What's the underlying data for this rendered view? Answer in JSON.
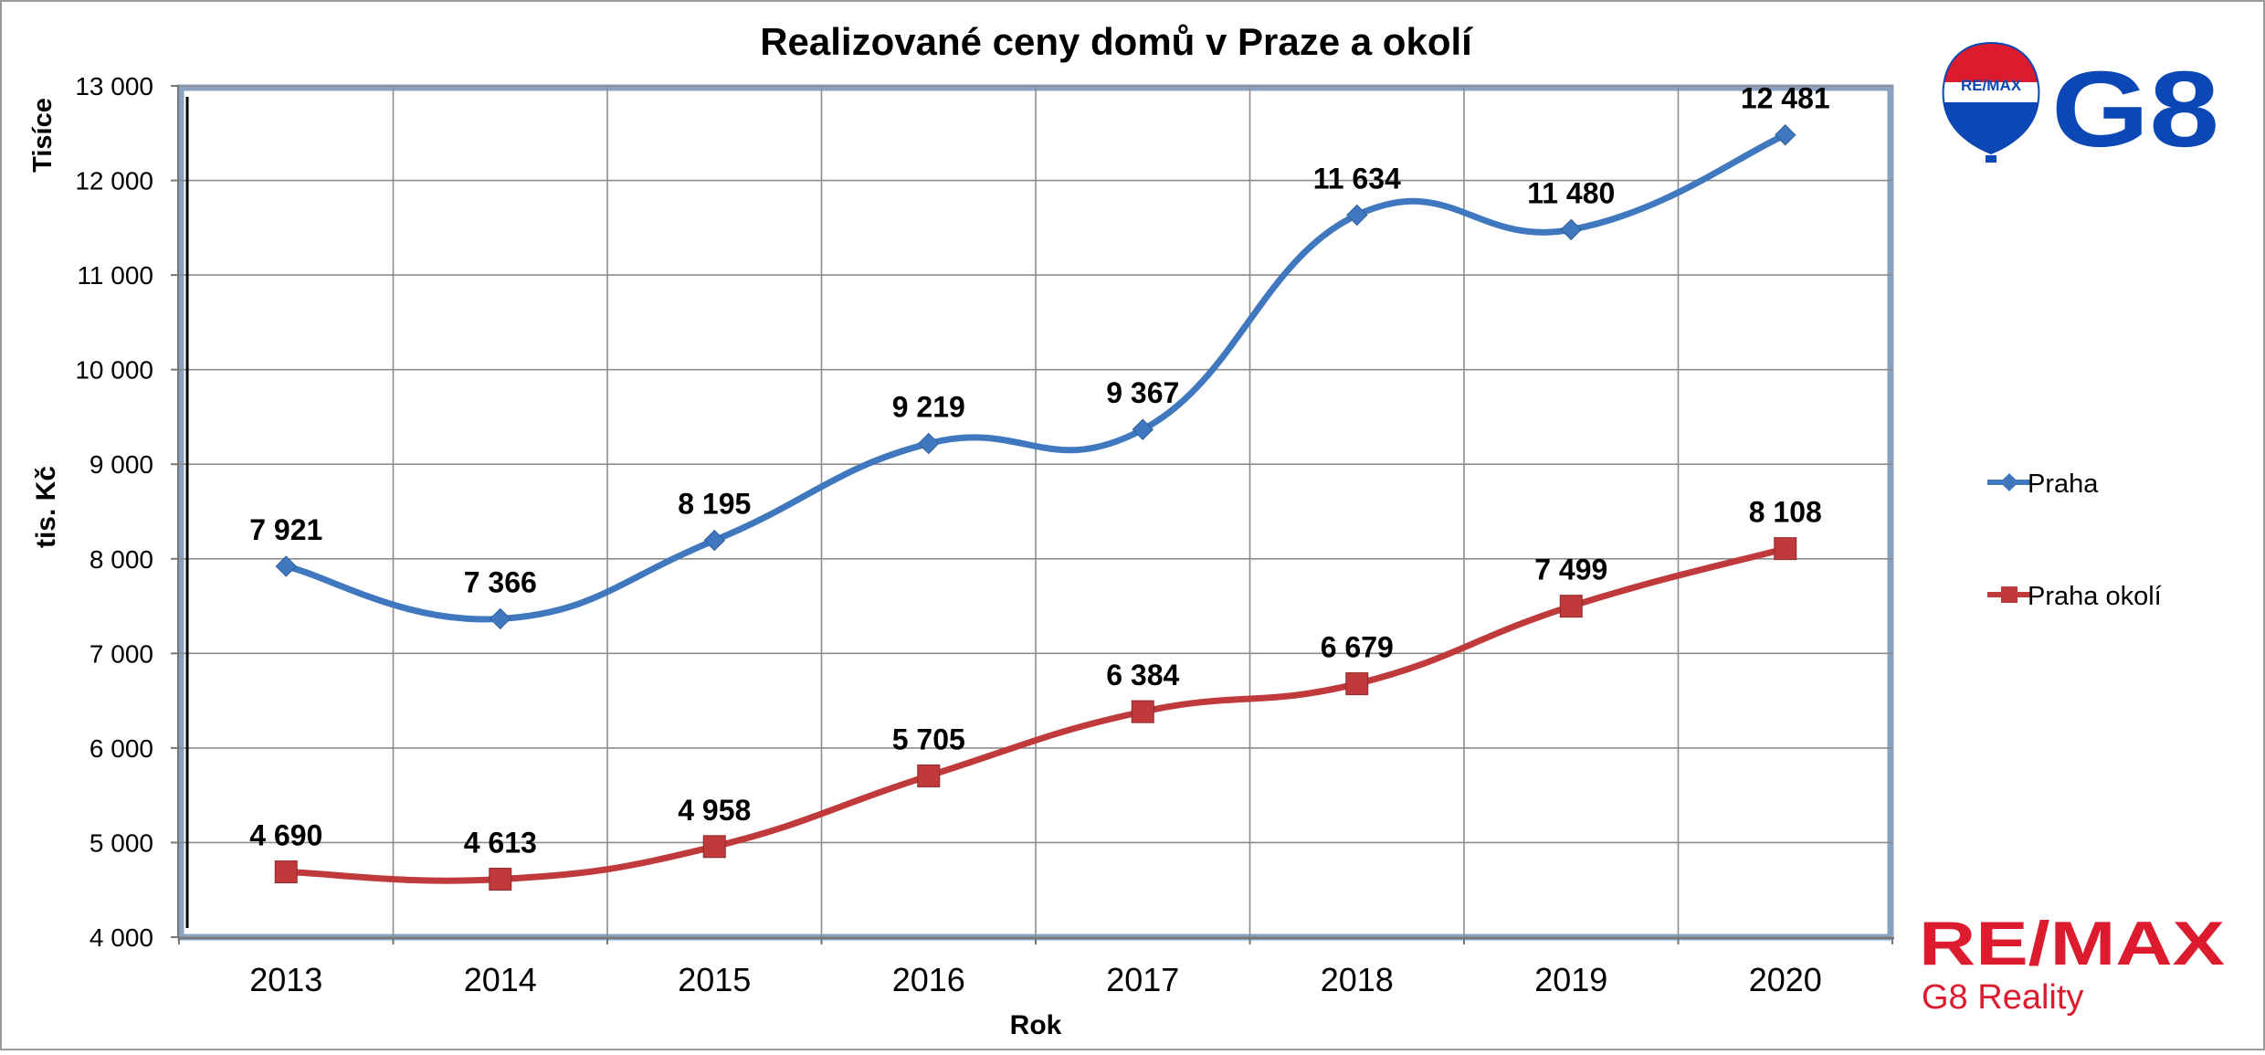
{
  "chart_data": {
    "type": "line",
    "title": "Realizované ceny domů v Praze a okolí",
    "xlabel": "Rok",
    "ylabel": "tis. Kč",
    "y_units_label": "Tisíce",
    "categories": [
      "2013",
      "2014",
      "2015",
      "2016",
      "2017",
      "2018",
      "2019",
      "2020"
    ],
    "ylim": [
      4000,
      13000
    ],
    "yticks": [
      4000,
      5000,
      6000,
      7000,
      8000,
      9000,
      10000,
      11000,
      12000,
      13000
    ],
    "ytick_labels": [
      "4 000",
      "5 000",
      "6 000",
      "7 000",
      "8 000",
      "9 000",
      "10 000",
      "11 000",
      "12 000",
      "13 000"
    ],
    "grid": true,
    "legend_position": "right",
    "series": [
      {
        "name": "Praha",
        "color": "#3f78bf",
        "marker": "diamond",
        "values": [
          7921,
          7366,
          8195,
          9219,
          9367,
          11634,
          11480,
          12481
        ],
        "labels": [
          "7 921",
          "7 366",
          "8 195",
          "9 219",
          "9 367",
          "11 634",
          "11 480",
          "12 481"
        ]
      },
      {
        "name": "Praha okolí",
        "color": "#c0393b",
        "marker": "square",
        "values": [
          4690,
          4613,
          4958,
          5705,
          6384,
          6679,
          7499,
          8108
        ],
        "labels": [
          "4 690",
          "4 613",
          "4 958",
          "5 705",
          "6 384",
          "6 679",
          "7 499",
          "8 108"
        ]
      }
    ]
  },
  "branding": {
    "balloon_text": "RE/MAX",
    "g8_text": "G8",
    "remax_text": "RE/MAX",
    "reality_text": "G8 Reality",
    "red": "#dc1c2e",
    "blue": "#0c47b6"
  }
}
